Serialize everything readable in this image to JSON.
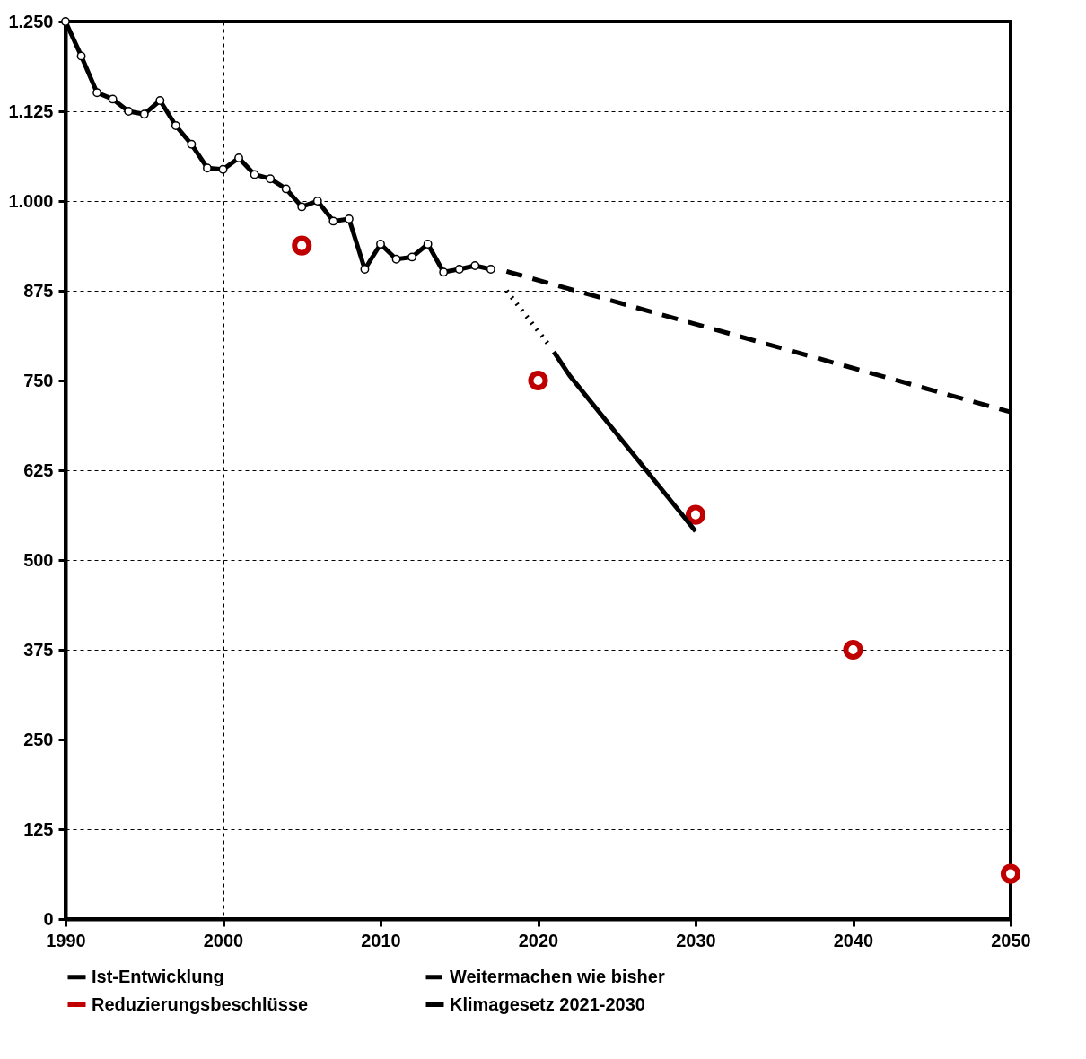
{
  "chart_data": {
    "type": "line",
    "x": [
      1990,
      1991,
      1992,
      1993,
      1994,
      1995,
      1996,
      1997,
      1998,
      1999,
      2000,
      2001,
      2002,
      2003,
      2004,
      2005,
      2006,
      2007,
      2008,
      2009,
      2010,
      2011,
      2012,
      2013,
      2014,
      2015,
      2016,
      2017
    ],
    "series": [
      {
        "name": "Ist-Entwicklung",
        "color": "#000000",
        "marker": "circle",
        "line_style": "solid",
        "values": [
          1250,
          1202,
          1151,
          1142,
          1125,
          1121,
          1140,
          1105,
          1079,
          1046,
          1044,
          1060,
          1037,
          1031,
          1017,
          992,
          1000,
          972,
          975,
          905,
          940,
          919,
          922,
          940,
          901,
          905,
          910,
          905
        ]
      },
      {
        "name": "Weitermachen wie bisher",
        "color": "#000000",
        "marker": "none",
        "line_style": "dashed",
        "x": [
          2018,
          2050
        ],
        "values": [
          902,
          706
        ]
      },
      {
        "name": "Reduzierungsbeschlüsse",
        "type": "scatter",
        "color": "#c00000",
        "marker": "circle",
        "x": [
          2005,
          2020,
          2030,
          2040,
          2050
        ],
        "values": [
          938,
          750,
          563,
          375,
          63
        ]
      },
      {
        "color": "#000000",
        "marker": "none",
        "line_style": "dotted",
        "x": [
          2018,
          2020,
          2020.6
        ],
        "values": [
          875,
          819,
          802
        ]
      },
      {
        "name": "Klimagesetz 2021-2030",
        "color": "#000000",
        "marker": "none",
        "line_style": "solid",
        "x": [
          2021,
          2022,
          2030
        ],
        "values": [
          790,
          757,
          540
        ]
      }
    ],
    "xlim": [
      1990,
      2050
    ],
    "xticks": [
      1990,
      2000,
      2010,
      2020,
      2030,
      2040,
      2050
    ],
    "ylim": [
      0,
      1250
    ],
    "yticks": [
      0,
      125,
      250,
      375,
      500,
      625,
      750,
      875,
      {
        "value": 1000,
        "label": "1.000"
      },
      {
        "value": 1125,
        "label": "1.125"
      },
      {
        "value": 1250,
        "label": "1.250"
      }
    ],
    "grid": true,
    "legend": "bottom"
  }
}
